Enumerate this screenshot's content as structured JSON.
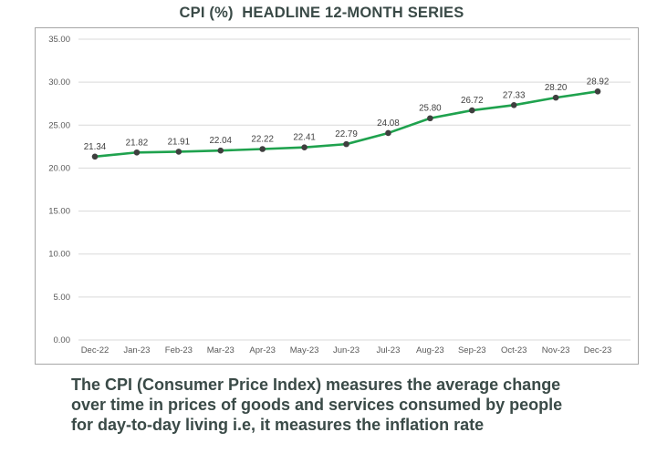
{
  "chart_data": {
    "type": "line",
    "title": "CPI (%)  HEADLINE 12-MONTH SERIES",
    "categories": [
      "Dec-22",
      "Jan-23",
      "Feb-23",
      "Mar-23",
      "Apr-23",
      "May-23",
      "Jun-23",
      "Jul-23",
      "Aug-23",
      "Sep-23",
      "Oct-23",
      "Nov-23",
      "Dec-23"
    ],
    "values": [
      21.34,
      21.82,
      21.91,
      22.04,
      22.22,
      22.41,
      22.79,
      24.08,
      25.8,
      26.72,
      27.33,
      28.2,
      28.92
    ],
    "ylim": [
      0,
      35
    ],
    "ytick_step": 5,
    "ytick_labels": [
      "0.00",
      "5.00",
      "10.00",
      "15.00",
      "20.00",
      "25.00",
      "30.00",
      "35.00"
    ],
    "grid": true,
    "legend": false,
    "data_labels": true
  },
  "caption": {
    "lines": [
      "The CPI (Consumer Price Index) measures the average change",
      "over time in prices of goods and services consumed by people",
      "for day-to-day living i.e, it measures the inflation rate"
    ]
  },
  "colors": {
    "line": "#1fa24e",
    "marker": "#3f3f3f",
    "grid": "#d9d9d9",
    "border": "#a6a6a6",
    "axis_text": "#595959",
    "data_label": "#404040",
    "title_text": "#3a4a47"
  }
}
